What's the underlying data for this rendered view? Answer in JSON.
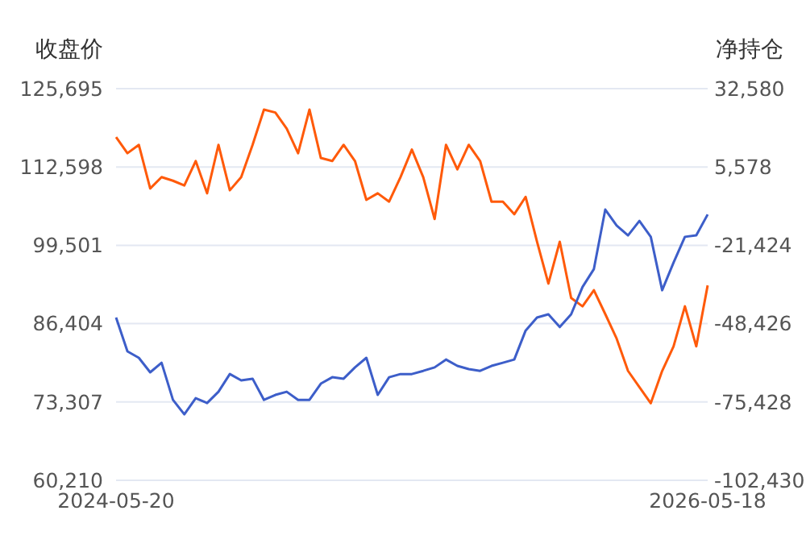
{
  "chart_data": {
    "type": "line",
    "ylabel": "收盘价",
    "y2label": "净持仓",
    "categories": [
      "2024-05-20",
      null,
      null,
      null,
      null,
      null,
      null,
      null,
      null,
      null,
      null,
      null,
      null,
      null,
      null,
      null,
      null,
      null,
      null,
      null,
      null,
      null,
      null,
      null,
      null,
      null,
      null,
      null,
      null,
      null,
      null,
      null,
      null,
      null,
      null,
      null,
      null,
      null,
      null,
      null,
      null,
      null,
      null,
      null,
      null,
      null,
      null,
      null,
      null,
      null,
      null,
      null,
      "2026-05-18"
    ],
    "series": [
      {
        "color": "#ff5a0a",
        "values": [
          117600,
          114900,
          116300,
          109000,
          110900,
          110300,
          109500,
          113600,
          108200,
          116300,
          108700,
          110900,
          116300,
          122200,
          121700,
          119000,
          114900,
          122200,
          114100,
          113600,
          116300,
          113600,
          107100,
          108200,
          106800,
          110900,
          115500,
          110900,
          103900,
          116300,
          112200,
          116300,
          113600,
          106800,
          106800,
          104700,
          107600,
          100100,
          93100,
          100100,
          90700,
          89300,
          92000,
          88000,
          83900,
          78500,
          75800,
          73100,
          78500,
          82600,
          89300,
          82600,
          92800
        ]
      },
      {
        "color": "#3d5ec9",
        "axis": "y2",
        "values": [
          -46300,
          -58000,
          -60200,
          -65200,
          -61900,
          -74700,
          -79700,
          -74100,
          -75800,
          -71900,
          -65800,
          -68000,
          -67400,
          -74700,
          -73000,
          -71900,
          -74700,
          -74700,
          -69100,
          -66900,
          -67400,
          -63500,
          -60200,
          -73000,
          -66900,
          -65800,
          -65800,
          -64700,
          -63500,
          -60800,
          -63000,
          -64100,
          -64700,
          -63000,
          -61900,
          -60800,
          -50800,
          -46300,
          -45200,
          -49600,
          -45200,
          -35800,
          -29600,
          -9100,
          -14600,
          -18000,
          -13000,
          -18500,
          -36900,
          -27400,
          -18500,
          -18000,
          -10800
        ]
      }
    ],
    "ylim": [
      60210,
      125695
    ],
    "yticks": [
      {
        "value": 60210,
        "label": "60,210"
      },
      {
        "value": 73307,
        "label": "73,307"
      },
      {
        "value": 86404,
        "label": "86,404"
      },
      {
        "value": 99501,
        "label": "99,501"
      },
      {
        "value": 112598,
        "label": "112,598"
      },
      {
        "value": 125695,
        "label": "125,695"
      }
    ],
    "y2lim": [
      -102430,
      32580
    ],
    "y2ticks": [
      {
        "value": -102430,
        "label": "-102,430"
      },
      {
        "value": -75428,
        "label": "-75,428"
      },
      {
        "value": -48426,
        "label": "-48,426"
      },
      {
        "value": -21424,
        "label": "-21,424"
      },
      {
        "value": 5578,
        "label": "5,578"
      },
      {
        "value": 32580,
        "label": "32,580"
      }
    ],
    "grid": "y",
    "marker": "none",
    "line_style": "solid",
    "legend": false
  }
}
